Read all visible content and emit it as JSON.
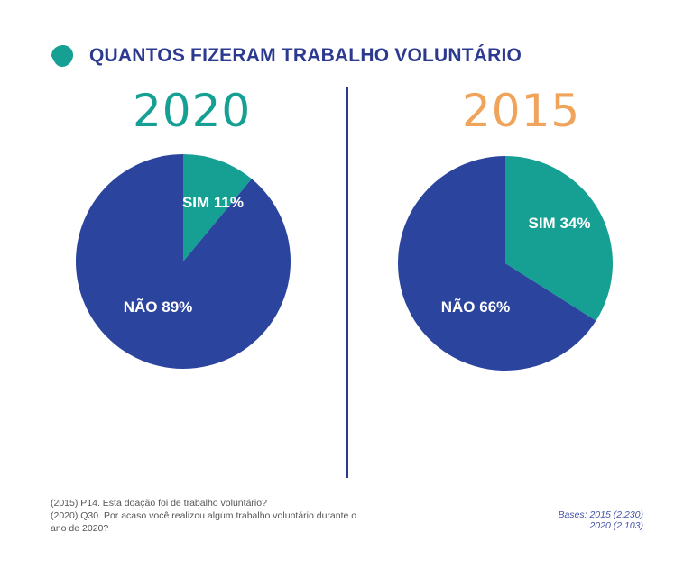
{
  "title": "QUANTOS FIZERAM TRABALHO VOLUNTÁRIO",
  "colors": {
    "sim": "#16a094",
    "nao": "#2b449e",
    "title": "#2b3a8f",
    "year_2020": "#16a094",
    "year_2015": "#f0a35b"
  },
  "chart_data": [
    {
      "type": "pie",
      "title": "2020",
      "slices": [
        {
          "label": "SIM 11%",
          "category": "SIM",
          "value": 11
        },
        {
          "label": "NÃO 89%",
          "category": "NÃO",
          "value": 89
        }
      ]
    },
    {
      "type": "pie",
      "title": "2015",
      "slices": [
        {
          "label": "SIM 34%",
          "category": "SIM",
          "value": 34
        },
        {
          "label": "NÃO 66%",
          "category": "NÃO",
          "value": 66
        }
      ]
    }
  ],
  "notes": [
    "(2015) P14.  Esta doação foi de trabalho voluntário?",
    "(2020) Q30. Por acaso você realizou algum trabalho voluntário durante o",
    "ano de 2020?"
  ],
  "bases": {
    "label_2015": "Bases: 2015 (2.230)",
    "label_2020": "2020 (2.103)"
  }
}
